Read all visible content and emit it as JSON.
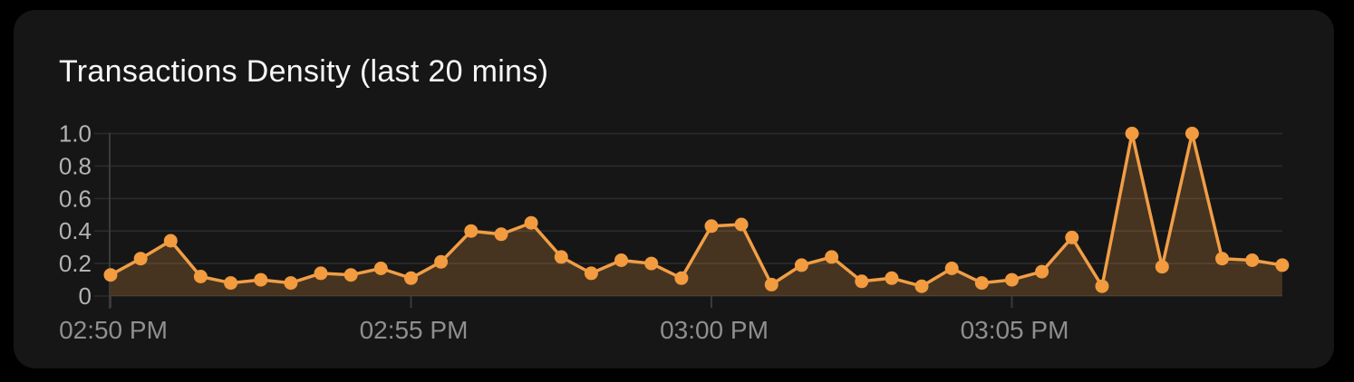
{
  "panel": {
    "title": "Transactions Density (last 20 mins)"
  },
  "colors": {
    "page_background": "#000000",
    "card_background": "#161616",
    "title_text": "#F7F7F7",
    "line": "#F19E46",
    "dot": "#F29B3F",
    "area_fill": "rgba(242,158,70,0.22)",
    "gridline": "#2B2B2B",
    "axis": "#3A3A3A",
    "y_label": "#B3B3B3",
    "x_label": "#8F8F8F"
  },
  "chart_data": {
    "type": "area",
    "title": "Transactions Density (last 20 mins)",
    "xlabel": "",
    "ylabel": "",
    "ylim": [
      0,
      1.0
    ],
    "grid": true,
    "legend_position": "none",
    "y_ticks": [
      {
        "value": 1.0,
        "label": "1.0"
      },
      {
        "value": 0.8,
        "label": "0.8"
      },
      {
        "value": 0.6,
        "label": "0.6"
      },
      {
        "value": 0.4,
        "label": "0.4"
      },
      {
        "value": 0.2,
        "label": "0.2"
      },
      {
        "value": 0.0,
        "label": "0"
      }
    ],
    "x_ticks": [
      {
        "index": 0,
        "label": "02:50 PM"
      },
      {
        "index": 10,
        "label": "02:55 PM"
      },
      {
        "index": 20,
        "label": "03:00 PM"
      },
      {
        "index": 30,
        "label": "03:05 PM"
      }
    ],
    "sample_interval": "30s",
    "values": [
      0.13,
      0.23,
      0.34,
      0.12,
      0.08,
      0.1,
      0.08,
      0.14,
      0.13,
      0.17,
      0.11,
      0.21,
      0.4,
      0.38,
      0.45,
      0.24,
      0.14,
      0.22,
      0.2,
      0.11,
      0.43,
      0.44,
      0.07,
      0.19,
      0.24,
      0.09,
      0.11,
      0.06,
      0.17,
      0.08,
      0.1,
      0.15,
      0.36,
      0.06,
      1.0,
      0.18,
      1.0,
      0.23,
      0.22,
      0.19
    ]
  }
}
